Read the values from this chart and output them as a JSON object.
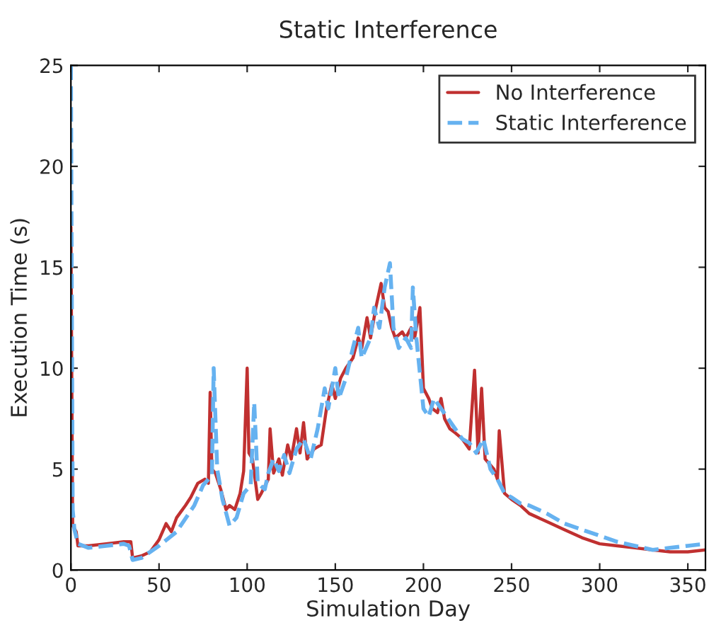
{
  "chart_data": {
    "type": "line",
    "title": "Static Interference",
    "xlabel": "Simulation Day",
    "ylabel": "Execution Time (s)",
    "xlim": [
      0,
      360
    ],
    "ylim": [
      0,
      25
    ],
    "xticks": [
      0,
      50,
      100,
      150,
      200,
      250,
      300,
      350
    ],
    "yticks": [
      0,
      5,
      10,
      15,
      20,
      25
    ],
    "grid": false,
    "legend": "top right",
    "marker": "none",
    "series": [
      {
        "name": "No Interference",
        "color": "#c03030",
        "line_style": "solid",
        "x": [
          0,
          1,
          3,
          4,
          10,
          20,
          30,
          34,
          35,
          40,
          45,
          50,
          54,
          57,
          60,
          65,
          68,
          72,
          76,
          78,
          79,
          80,
          82,
          85,
          88,
          90,
          93,
          96,
          98,
          100,
          101,
          103,
          106,
          108,
          112,
          113,
          115,
          118,
          120,
          123,
          125,
          128,
          130,
          132,
          134,
          138,
          142,
          145,
          148,
          150,
          153,
          156,
          160,
          163,
          165,
          168,
          170,
          173,
          176,
          178,
          180,
          182,
          184,
          188,
          190,
          193,
          195,
          198,
          200,
          203,
          205,
          208,
          210,
          212,
          215,
          218,
          222,
          226,
          229,
          231,
          233,
          235,
          238,
          240,
          242,
          243,
          246,
          250,
          255,
          260,
          270,
          280,
          290,
          300,
          310,
          320,
          330,
          340,
          350,
          360
        ],
        "values": [
          17,
          2.2,
          1.9,
          1.2,
          1.2,
          1.3,
          1.4,
          1.4,
          0.6,
          0.7,
          0.9,
          1.5,
          2.3,
          1.9,
          2.6,
          3.2,
          3.6,
          4.3,
          4.5,
          4.3,
          8.8,
          5.0,
          4.8,
          4.0,
          3.0,
          3.2,
          3.0,
          3.8,
          4.9,
          10.0,
          5.8,
          5.5,
          3.5,
          3.8,
          4.5,
          7.0,
          4.8,
          5.5,
          4.7,
          6.2,
          5.5,
          7.0,
          5.8,
          7.3,
          5.5,
          6.0,
          6.2,
          8.0,
          9.2,
          8.5,
          9.5,
          10.0,
          10.5,
          11.5,
          11.0,
          12.5,
          11.5,
          13.0,
          14.2,
          13.0,
          12.8,
          12.0,
          11.5,
          11.8,
          11.5,
          12.0,
          11.5,
          13.0,
          9.0,
          8.5,
          8.0,
          7.8,
          8.5,
          7.5,
          7.0,
          6.8,
          6.5,
          6.0,
          9.9,
          5.8,
          9.0,
          5.5,
          5.2,
          5.0,
          4.5,
          6.9,
          3.8,
          3.5,
          3.2,
          2.8,
          2.4,
          2.0,
          1.6,
          1.3,
          1.2,
          1.1,
          1.0,
          0.9,
          0.9,
          1.0
        ]
      },
      {
        "name": "Static Interference",
        "color": "#66b2f0",
        "line_style": "dashed",
        "x": [
          0,
          1,
          2,
          4,
          10,
          20,
          30,
          33,
          35,
          40,
          50,
          60,
          70,
          75,
          80,
          81,
          83,
          86,
          90,
          94,
          98,
          102,
          104,
          106,
          110,
          112,
          115,
          118,
          121,
          124,
          128,
          132,
          136,
          140,
          144,
          146,
          150,
          152,
          156,
          160,
          163,
          165,
          170,
          172,
          175,
          178,
          181,
          183,
          186,
          190,
          193,
          194,
          196,
          200,
          203,
          206,
          210,
          214,
          218,
          222,
          226,
          230,
          234,
          238,
          242,
          246,
          250,
          255,
          260,
          270,
          280,
          290,
          300,
          310,
          320,
          330,
          340,
          350,
          360
        ],
        "values": [
          25,
          3,
          2,
          1.3,
          1.1,
          1.2,
          1.3,
          1.2,
          0.5,
          0.6,
          1.2,
          1.9,
          3.2,
          4.2,
          4.7,
          10.0,
          5.0,
          3.5,
          2.2,
          2.6,
          3.8,
          4.2,
          8.3,
          4.3,
          4.0,
          4.8,
          5.5,
          4.9,
          5.7,
          4.8,
          6.0,
          6.5,
          5.5,
          7.0,
          9.0,
          8.0,
          10.0,
          8.5,
          9.5,
          11.0,
          12.0,
          10.5,
          11.5,
          13.0,
          12.0,
          14.0,
          15.2,
          12.0,
          11.0,
          11.5,
          11.0,
          14.0,
          11.5,
          8.0,
          7.6,
          8.5,
          8.0,
          7.5,
          7.0,
          6.5,
          6.3,
          5.8,
          6.5,
          5.0,
          4.5,
          3.8,
          3.6,
          3.3,
          3.2,
          2.8,
          2.3,
          2.0,
          1.7,
          1.4,
          1.2,
          1.0,
          1.1,
          1.2,
          1.3
        ]
      }
    ]
  }
}
